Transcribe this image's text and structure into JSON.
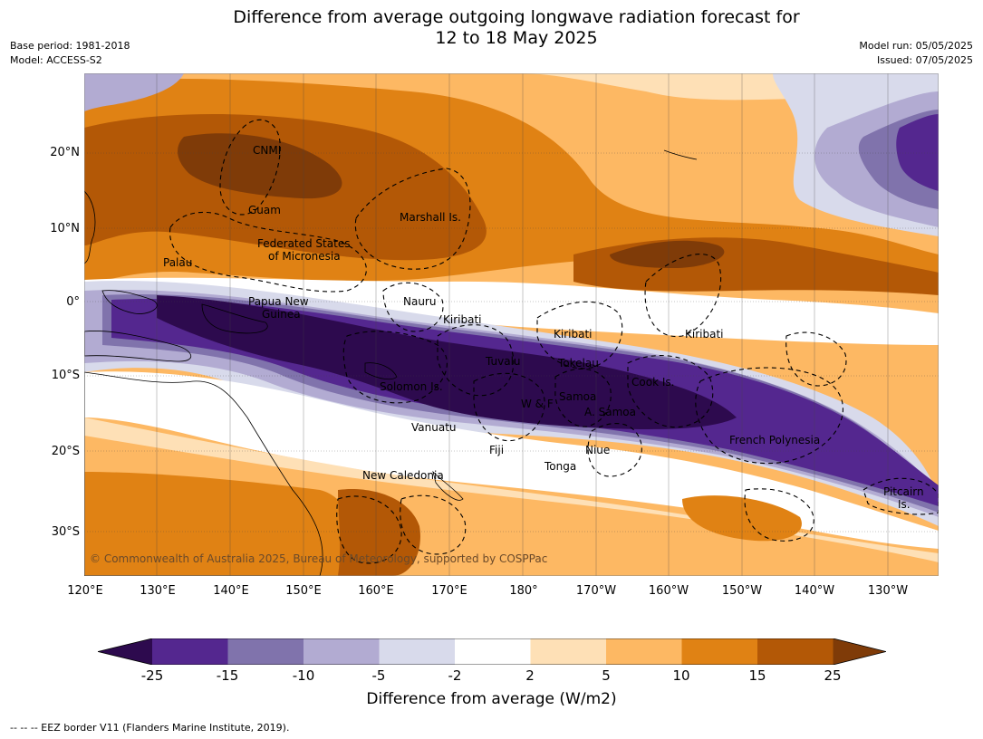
{
  "title_line1": "Difference from average outgoing longwave radiation forecast for",
  "title_line2": "12 to 18 May 2025",
  "base_period": "Base period: 1981-2018",
  "model": "Model: ACCESS-S2",
  "model_run": "Model run: 05/05/2025",
  "issued": "Issued: 07/05/2025",
  "latitude_ticks": [
    "20°N",
    "10°N",
    "0°",
    "10°S",
    "20°S",
    "30°S"
  ],
  "longitude_ticks": [
    "120°E",
    "130°E",
    "140°E",
    "150°E",
    "160°E",
    "170°E",
    "180°",
    "170°W",
    "160°W",
    "150°W",
    "140°W",
    "130°W"
  ],
  "places": [
    "CNMI",
    "Guam",
    "Marshall Is.",
    "Federated States",
    "of Micronesia",
    "Palau",
    "Papua New",
    "Guinea",
    "Nauru",
    "Kiribati",
    "Kiribati",
    "Kiribati",
    "Tuvalu",
    "Tokelau",
    "Cook Is.",
    "Solomon Is.",
    "W & F",
    "Samoa",
    "A. Samoa",
    "Vanuatu",
    "Fiji",
    "Niue",
    "Tonga",
    "French Polynesia",
    "New Caledonia",
    "Pitcairn",
    "Is."
  ],
  "copyright": "© Commonwealth of Australia 2025, Bureau of Meteorology, supported by COSPPac",
  "colorbar": {
    "label": "Difference from average (W/m2)",
    "ticks": [
      "-25",
      "-15",
      "-10",
      "-5",
      "-2",
      "2",
      "5",
      "10",
      "15",
      "25"
    ],
    "colors": [
      "#2d0a4e",
      "#54278f",
      "#8073ac",
      "#b2abd2",
      "#d8daeb",
      "#ffffff",
      "#fee0b6",
      "#fdb863",
      "#e08214",
      "#b35806",
      "#7f3b08"
    ]
  },
  "footnote": "--  --  -- EEZ border V11 (Flanders Marine Institute, 2019)."
}
